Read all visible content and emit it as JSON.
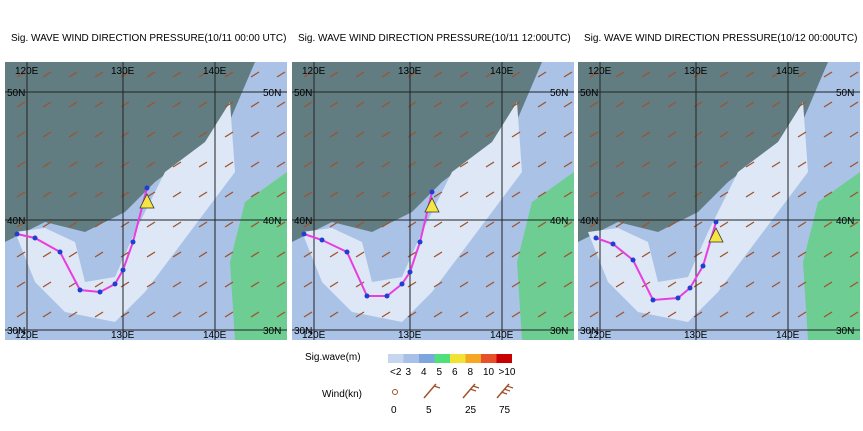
{
  "panels": [
    {
      "title": "Sig. WAVE WIND DIRECTION PRESSURE(10/11 00:00 UTC)",
      "lon_labels": [
        "120E",
        "130E",
        "140E"
      ],
      "lat_labels": [
        "50N",
        "40N",
        "30N"
      ]
    },
    {
      "title": "Sig. WAVE WIND DIRECTION PRESSURE(10/11 12:00UTC)",
      "lon_labels": [
        "120E",
        "130E",
        "140E"
      ],
      "lat_labels": [
        "50N",
        "40N",
        "30N"
      ]
    },
    {
      "title": "Sig. WAVE WIND DIRECTION PRESSURE(10/12 00:00UTC)",
      "lon_labels": [
        "120E",
        "130E",
        "140E"
      ],
      "lat_labels": [
        "50N",
        "40N",
        "30N"
      ]
    }
  ],
  "legend": {
    "wave_title": "Sig.wave(m)",
    "wave_labels": [
      "<2",
      "3",
      "4",
      "5",
      "6",
      "8",
      "10",
      ">10"
    ],
    "wave_colors": [
      "#c6d6ee",
      "#a6c0e8",
      "#7ea6de",
      "#4fe07c",
      "#f2e233",
      "#f5a623",
      "#e8502a",
      "#c80000"
    ],
    "wind_title": "Wind(kn)",
    "wind_labels": [
      "0",
      "5",
      "25",
      "75"
    ]
  }
}
